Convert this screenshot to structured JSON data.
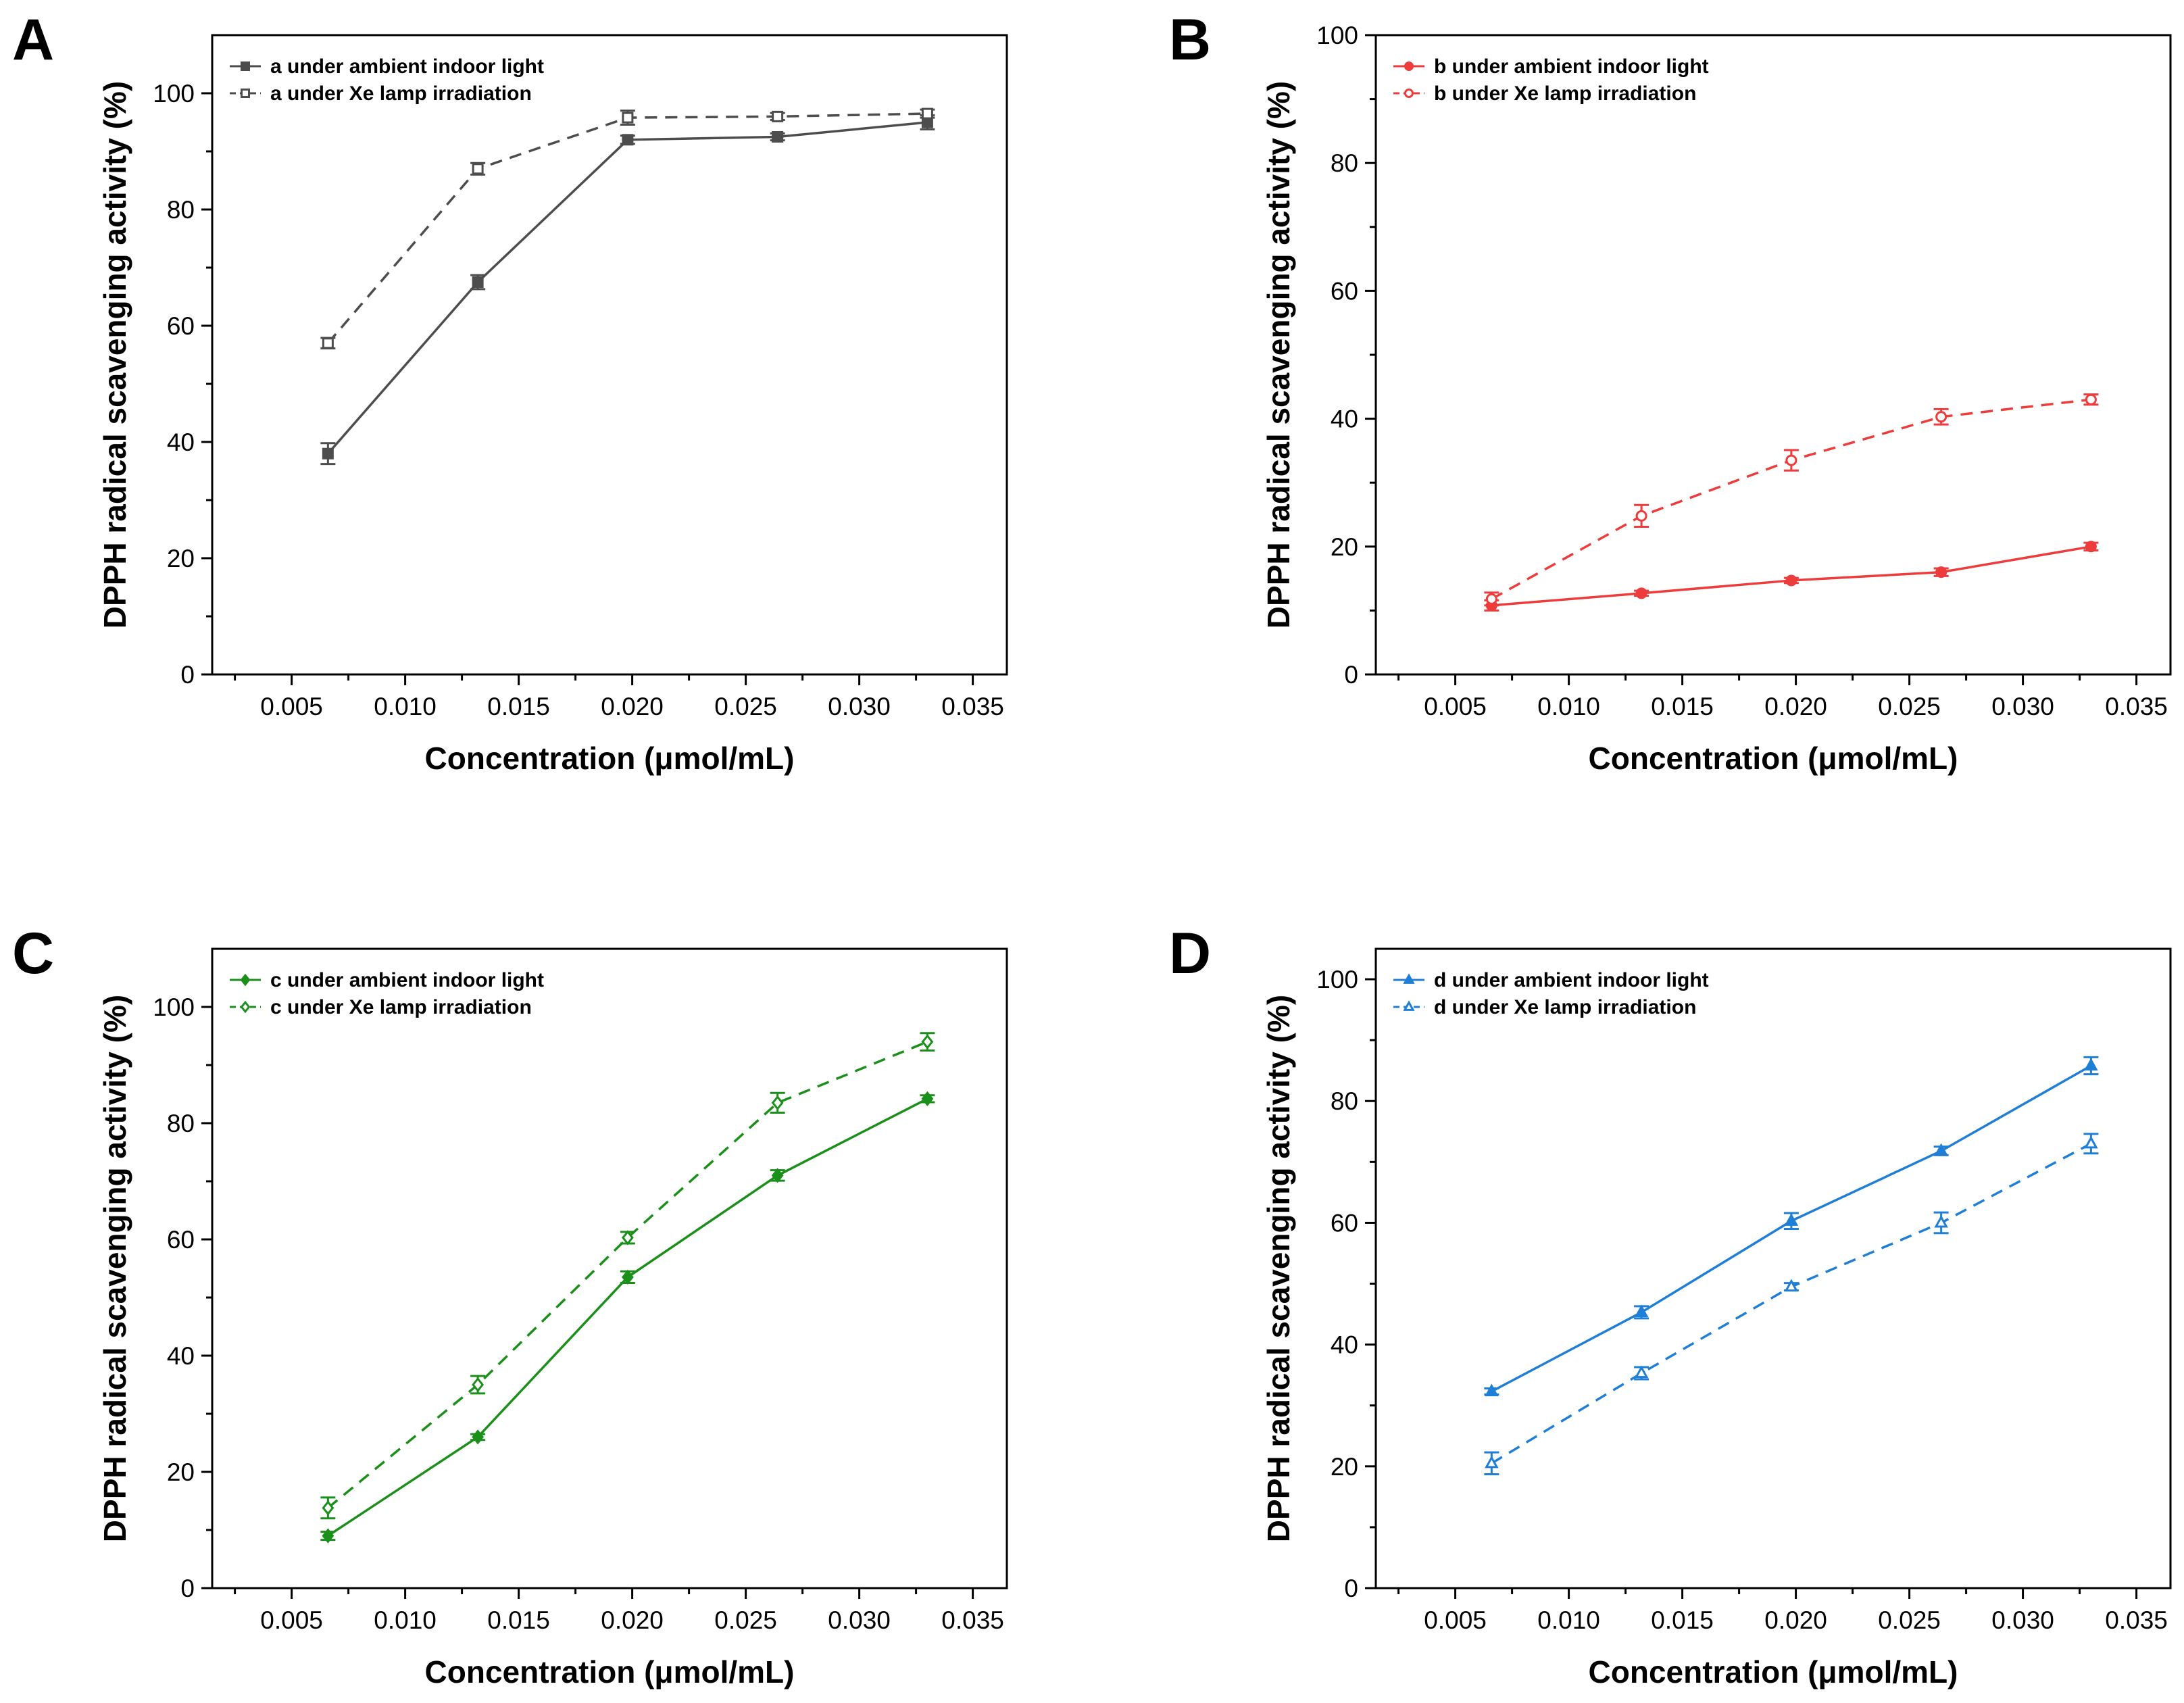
{
  "chart_data": [
    {
      "panel": "A",
      "type": "line",
      "xlabel": "Concentration (μmol/mL)",
      "ylabel": "DPPH radical scavenging activity (%)",
      "xlim": [
        0.0015,
        0.0365
      ],
      "ylim": [
        0,
        110
      ],
      "xticks": [
        "0.005",
        "0.010",
        "0.015",
        "0.020",
        "0.025",
        "0.030",
        "0.035"
      ],
      "yticks": [
        "0",
        "20",
        "40",
        "60",
        "80",
        "100"
      ],
      "color": "#4d4d4d",
      "legend_position": "top-left",
      "x": [
        0.0066,
        0.0132,
        0.0198,
        0.0264,
        0.033
      ],
      "series": [
        {
          "name": "a under ambient indoor light",
          "marker": "square",
          "filled": true,
          "dashed": false,
          "values": [
            38.0,
            67.5,
            92.0,
            92.5,
            95.0
          ],
          "errors": [
            1.8,
            1.2,
            0.7,
            0.6,
            1.2
          ]
        },
        {
          "name": "a under Xe lamp irradiation",
          "marker": "square",
          "filled": false,
          "dashed": true,
          "values": [
            57.0,
            87.0,
            95.8,
            96.0,
            96.5
          ],
          "errors": [
            0.9,
            1.0,
            1.2,
            0.6,
            0.7
          ]
        }
      ]
    },
    {
      "panel": "B",
      "type": "line",
      "xlabel": "Concentration (μmol/mL)",
      "ylabel": "DPPH radical scavenging activity (%)",
      "xlim": [
        0.0015,
        0.0365
      ],
      "ylim": [
        0,
        100
      ],
      "xticks": [
        "0.005",
        "0.010",
        "0.015",
        "0.020",
        "0.025",
        "0.030",
        "0.035"
      ],
      "yticks": [
        "0",
        "20",
        "40",
        "60",
        "80",
        "100"
      ],
      "color": "#ee3c3c",
      "legend_position": "top-left",
      "x": [
        0.0066,
        0.0132,
        0.0198,
        0.0264,
        0.033
      ],
      "series": [
        {
          "name": "b under ambient indoor light",
          "marker": "circle",
          "filled": true,
          "dashed": false,
          "values": [
            10.8,
            12.7,
            14.7,
            16.0,
            20.0
          ],
          "errors": [
            0.8,
            0.4,
            0.4,
            0.6,
            0.6
          ]
        },
        {
          "name": "b under Xe lamp irradiation",
          "marker": "circle",
          "filled": false,
          "dashed": true,
          "values": [
            11.8,
            24.8,
            33.5,
            40.3,
            43.0
          ],
          "errors": [
            1.0,
            1.7,
            1.6,
            1.2,
            0.8
          ]
        }
      ]
    },
    {
      "panel": "C",
      "type": "line",
      "xlabel": "Concentration (μmol/mL)",
      "ylabel": "DPPH radical scavenging activity (%)",
      "xlim": [
        0.0015,
        0.0365
      ],
      "ylim": [
        0,
        110
      ],
      "xticks": [
        "0.005",
        "0.010",
        "0.015",
        "0.020",
        "0.025",
        "0.030",
        "0.035"
      ],
      "yticks": [
        "0",
        "20",
        "40",
        "60",
        "80",
        "100"
      ],
      "color": "#1a8f1a",
      "legend_position": "top-left",
      "x": [
        0.0066,
        0.0132,
        0.0198,
        0.0264,
        0.033
      ],
      "series": [
        {
          "name": "c under ambient indoor light",
          "marker": "diamond",
          "filled": true,
          "dashed": false,
          "values": [
            9.0,
            26.0,
            53.5,
            71.0,
            84.2
          ],
          "errors": [
            0.7,
            0.5,
            1.0,
            0.9,
            0.6
          ]
        },
        {
          "name": "c under Xe lamp irradiation",
          "marker": "diamond",
          "filled": false,
          "dashed": true,
          "values": [
            13.8,
            35.0,
            60.3,
            83.5,
            94.0
          ],
          "errors": [
            1.8,
            1.5,
            1.0,
            1.7,
            1.5
          ]
        }
      ]
    },
    {
      "panel": "D",
      "type": "line",
      "xlabel": "Concentration (μmol/mL)",
      "ylabel": "DPPH radical scavenging activity (%)",
      "xlim": [
        0.0015,
        0.0365
      ],
      "ylim": [
        0,
        105
      ],
      "xticks": [
        "0.005",
        "0.010",
        "0.015",
        "0.020",
        "0.025",
        "0.030",
        "0.035"
      ],
      "yticks": [
        "0",
        "20",
        "40",
        "60",
        "80",
        "100"
      ],
      "color": "#1f7fd6",
      "legend_position": "top-left",
      "x": [
        0.0066,
        0.0132,
        0.0198,
        0.0264,
        0.033
      ],
      "series": [
        {
          "name": "d under ambient indoor light",
          "marker": "triangle",
          "filled": true,
          "dashed": false,
          "values": [
            32.3,
            45.3,
            60.3,
            71.8,
            85.8
          ],
          "errors": [
            0.5,
            1.0,
            1.3,
            0.7,
            1.4
          ]
        },
        {
          "name": "d under Xe lamp irradiation",
          "marker": "triangle",
          "filled": false,
          "dashed": true,
          "values": [
            20.5,
            35.3,
            49.5,
            60.0,
            73.0
          ],
          "errors": [
            1.8,
            1.0,
            0.6,
            1.7,
            1.6
          ]
        }
      ]
    }
  ]
}
